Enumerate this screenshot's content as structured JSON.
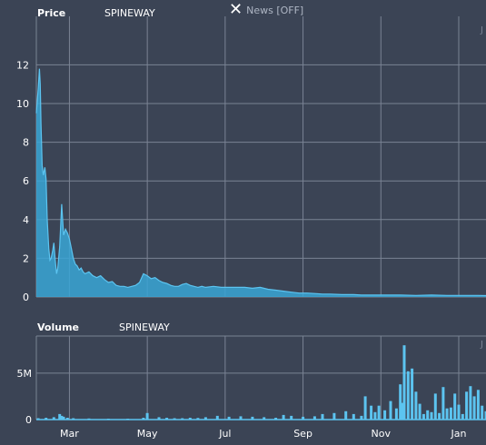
{
  "header": {
    "price_label": "Price",
    "symbol": "SPINEWAY",
    "news_icon": "close-icon",
    "news_label": "News [OFF]",
    "volume_label": "Volume",
    "volume_symbol": "SPINEWAY",
    "edge_glyph": "J"
  },
  "colors": {
    "background": "#3b4455",
    "grid": "#7a8394",
    "series_fill": "#3aa6d6",
    "series_line": "#5cc4f0",
    "text": "#ffffff"
  },
  "chart_data": [
    {
      "type": "area",
      "name": "price",
      "ylim": [
        0,
        13
      ],
      "yticks": [
        0,
        2,
        4,
        6,
        8,
        10,
        12
      ],
      "grid": true,
      "x_tick_labels": [
        "Mar",
        "May",
        "Jul",
        "Sep",
        "Nov",
        "Jan"
      ],
      "x_tick_positions": [
        0.5,
        2.5,
        4.5,
        6.5,
        8.5,
        10.5
      ],
      "xlim": [
        -0.35,
        11.2
      ],
      "x": [
        -0.35,
        -0.3,
        -0.27,
        -0.25,
        -0.23,
        -0.2,
        -0.17,
        -0.13,
        -0.1,
        -0.07,
        -0.03,
        0.0,
        0.03,
        0.07,
        0.1,
        0.13,
        0.17,
        0.2,
        0.25,
        0.3,
        0.35,
        0.4,
        0.45,
        0.5,
        0.55,
        0.6,
        0.65,
        0.7,
        0.75,
        0.8,
        0.85,
        0.9,
        1.0,
        1.1,
        1.2,
        1.3,
        1.4,
        1.5,
        1.6,
        1.7,
        1.8,
        1.9,
        2.0,
        2.1,
        2.2,
        2.3,
        2.4,
        2.5,
        2.6,
        2.7,
        2.8,
        2.9,
        3.0,
        3.1,
        3.2,
        3.3,
        3.4,
        3.5,
        3.6,
        3.7,
        3.8,
        3.9,
        4.0,
        4.2,
        4.4,
        4.6,
        4.8,
        5.0,
        5.2,
        5.4,
        5.6,
        5.8,
        6.0,
        6.2,
        6.4,
        6.6,
        6.8,
        7.0,
        7.2,
        7.5,
        7.8,
        8.0,
        8.3,
        8.6,
        9.0,
        9.4,
        9.8,
        10.2,
        10.6,
        11.0,
        11.2
      ],
      "y": [
        9.5,
        10.8,
        11.8,
        11.0,
        9.0,
        6.8,
        6.3,
        6.7,
        6.1,
        4.0,
        2.5,
        1.9,
        2.0,
        2.4,
        2.8,
        2.0,
        1.2,
        1.5,
        2.6,
        4.8,
        3.2,
        3.5,
        3.3,
        3.0,
        2.5,
        2.0,
        1.7,
        1.6,
        1.4,
        1.5,
        1.3,
        1.2,
        1.3,
        1.1,
        1.0,
        1.1,
        0.9,
        0.75,
        0.8,
        0.6,
        0.55,
        0.55,
        0.5,
        0.55,
        0.6,
        0.75,
        1.2,
        1.1,
        0.95,
        1.0,
        0.85,
        0.75,
        0.7,
        0.6,
        0.55,
        0.55,
        0.65,
        0.7,
        0.6,
        0.55,
        0.5,
        0.55,
        0.5,
        0.55,
        0.5,
        0.5,
        0.5,
        0.5,
        0.45,
        0.5,
        0.4,
        0.35,
        0.3,
        0.25,
        0.2,
        0.2,
        0.18,
        0.15,
        0.15,
        0.12,
        0.12,
        0.1,
        0.1,
        0.1,
        0.1,
        0.08,
        0.1,
        0.08,
        0.08,
        0.08,
        0.07
      ]
    },
    {
      "type": "bar",
      "name": "volume",
      "ylim": [
        0,
        9000000
      ],
      "yticks": [
        0,
        5000000
      ],
      "ytick_labels": [
        "0",
        "5M"
      ],
      "grid": true,
      "x_tick_labels": [
        "Mar",
        "May",
        "Jul",
        "Sep",
        "Nov",
        "Jan"
      ],
      "x_tick_positions": [
        0.5,
        2.5,
        4.5,
        6.5,
        8.5,
        10.5
      ],
      "xlim": [
        -0.35,
        11.2
      ],
      "x": [
        -0.3,
        -0.1,
        0.1,
        0.25,
        0.3,
        0.35,
        0.45,
        0.6,
        1.0,
        1.5,
        2.0,
        2.4,
        2.5,
        2.8,
        3.0,
        3.2,
        3.4,
        3.6,
        3.8,
        4.0,
        4.3,
        4.6,
        4.9,
        5.2,
        5.5,
        5.8,
        6.0,
        6.2,
        6.5,
        6.8,
        7.0,
        7.3,
        7.6,
        7.8,
        8.0,
        8.1,
        8.25,
        8.35,
        8.45,
        8.6,
        8.75,
        8.9,
        9.0,
        9.05,
        9.1,
        9.2,
        9.3,
        9.4,
        9.5,
        9.6,
        9.7,
        9.8,
        9.9,
        10.0,
        10.1,
        10.2,
        10.3,
        10.4,
        10.5,
        10.6,
        10.7,
        10.8,
        10.9,
        11.0,
        11.1,
        11.2
      ],
      "values": [
        150000,
        200000,
        250000,
        600000,
        400000,
        300000,
        200000,
        150000,
        120000,
        100000,
        90000,
        200000,
        700000,
        250000,
        200000,
        150000,
        150000,
        200000,
        180000,
        250000,
        400000,
        300000,
        350000,
        300000,
        250000,
        200000,
        500000,
        400000,
        300000,
        350000,
        600000,
        700000,
        900000,
        600000,
        400000,
        2500000,
        1500000,
        800000,
        1500000,
        1000000,
        2000000,
        1200000,
        3800000,
        1800000,
        8000000,
        5200000,
        5500000,
        3000000,
        1700000,
        600000,
        1000000,
        800000,
        2800000,
        700000,
        3500000,
        1200000,
        1300000,
        2800000,
        1600000,
        600000,
        3000000,
        3600000,
        2500000,
        3200000,
        1500000,
        900000
      ]
    }
  ]
}
